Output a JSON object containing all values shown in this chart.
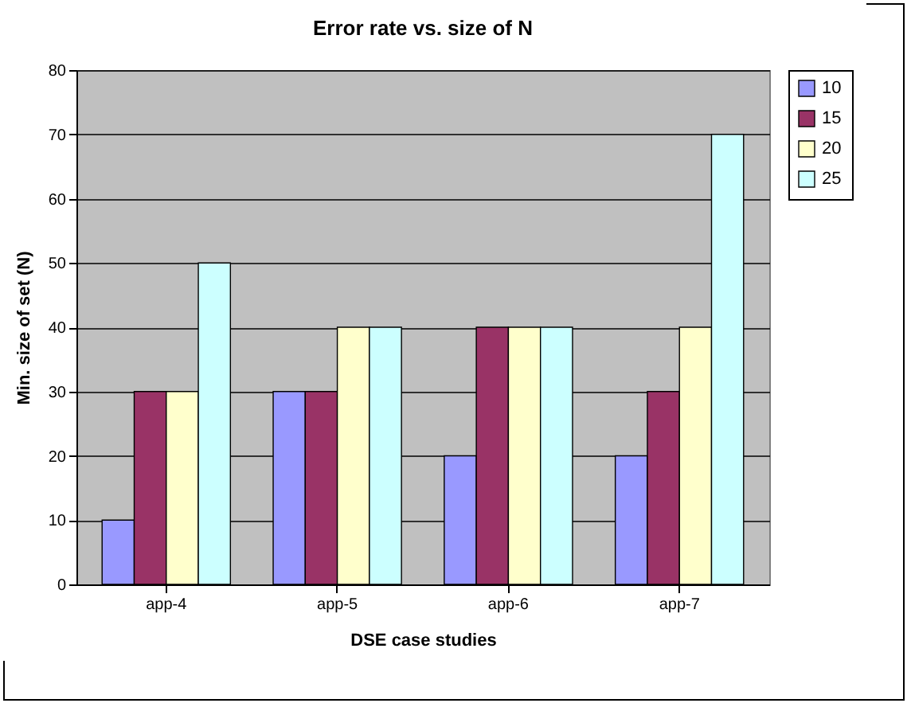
{
  "chart_data": {
    "type": "bar",
    "title": "Error rate vs. size of N",
    "xlabel": "DSE case studies",
    "ylabel": "Min. size of set (N)",
    "categories": [
      "app-4",
      "app-5",
      "app-6",
      "app-7"
    ],
    "series": [
      {
        "name": "10",
        "color": "#9999ff",
        "values": [
          10,
          30,
          20,
          20
        ]
      },
      {
        "name": "15",
        "color": "#993366",
        "values": [
          30,
          30,
          40,
          30
        ]
      },
      {
        "name": "20",
        "color": "#ffffcc",
        "values": [
          30,
          40,
          40,
          40
        ]
      },
      {
        "name": "25",
        "color": "#ccffff",
        "values": [
          50,
          40,
          40,
          70
        ]
      }
    ],
    "ylim": [
      0,
      80
    ],
    "yticks": [
      0,
      10,
      20,
      30,
      40,
      50,
      60,
      70,
      80
    ],
    "grid": "y",
    "legend": "right"
  }
}
